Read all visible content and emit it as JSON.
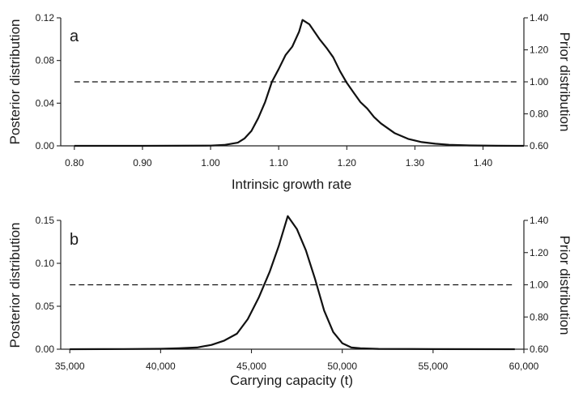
{
  "chart_data": [
    {
      "type": "line",
      "panel_label": "a",
      "xlabel": "Intrinsic growth rate",
      "ylabel": "Posterior distribution",
      "y2label": "Prior distribution",
      "xlim": [
        0.78,
        1.46
      ],
      "ylim": [
        0,
        0.12
      ],
      "y2lim": [
        0.6,
        1.4
      ],
      "x_ticks": [
        0.8,
        0.9,
        1.0,
        1.1,
        1.2,
        1.3,
        1.4
      ],
      "x_tick_labels": [
        "0.80",
        "0.90",
        "1.00",
        "1.10",
        "1.20",
        "1.30",
        "1.40"
      ],
      "y_ticks": [
        0,
        0.04,
        0.08,
        0.12
      ],
      "y_tick_labels": [
        "0.00",
        "0.04",
        "0.08",
        "0.12"
      ],
      "y2_ticks": [
        0.6,
        0.8,
        1.0,
        1.2,
        1.4
      ],
      "y2_tick_labels": [
        "0.60",
        "0.80",
        "1.00",
        "1.20",
        "1.40"
      ],
      "series": [
        {
          "name": "Posterior distribution",
          "axis": "left",
          "style": "solid",
          "x": [
            0.8,
            0.9,
            1.0,
            1.02,
            1.04,
            1.05,
            1.06,
            1.07,
            1.08,
            1.09,
            1.1,
            1.11,
            1.12,
            1.13,
            1.135,
            1.145,
            1.16,
            1.17,
            1.18,
            1.19,
            1.2,
            1.21,
            1.22,
            1.23,
            1.24,
            1.25,
            1.27,
            1.29,
            1.31,
            1.33,
            1.35,
            1.38,
            1.42,
            1.46
          ],
          "y": [
            0,
            0,
            0.0002,
            0.0008,
            0.003,
            0.007,
            0.014,
            0.026,
            0.041,
            0.06,
            0.072,
            0.085,
            0.093,
            0.107,
            0.118,
            0.114,
            0.1,
            0.092,
            0.083,
            0.07,
            0.059,
            0.05,
            0.041,
            0.035,
            0.027,
            0.021,
            0.012,
            0.0065,
            0.0035,
            0.002,
            0.001,
            0.0004,
            0.0001,
            0
          ]
        },
        {
          "name": "Prior distribution",
          "axis": "right",
          "style": "dashed",
          "x": [
            0.8,
            1.45
          ],
          "y": [
            1.0,
            1.0
          ]
        }
      ]
    },
    {
      "type": "line",
      "panel_label": "b",
      "xlabel": "Carrying capacity (t)",
      "ylabel": "Posterior distribution",
      "y2label": "Prior distribution",
      "xlim": [
        34500,
        60000
      ],
      "ylim": [
        0,
        0.15
      ],
      "y2lim": [
        0.6,
        1.4
      ],
      "x_ticks": [
        35000,
        40000,
        45000,
        50000,
        55000,
        60000
      ],
      "x_tick_labels": [
        "35,000",
        "40,000",
        "45,000",
        "50,000",
        "55,000",
        "60,000"
      ],
      "y_ticks": [
        0,
        0.05,
        0.1,
        0.15
      ],
      "y_tick_labels": [
        "0.00",
        "0.05",
        "0.10",
        "0.15"
      ],
      "y2_ticks": [
        0.6,
        0.8,
        1.0,
        1.2,
        1.4
      ],
      "y2_tick_labels": [
        "0.60",
        "0.80",
        "1.00",
        "1.20",
        "1.40"
      ],
      "series": [
        {
          "name": "Posterior distribution",
          "axis": "left",
          "style": "solid",
          "x": [
            35000,
            38000,
            40000,
            41000,
            42000,
            42800,
            43500,
            44200,
            44800,
            45400,
            46000,
            46500,
            47000,
            47500,
            48000,
            48500,
            49000,
            49500,
            50000,
            50500,
            51000,
            52000,
            55000,
            59500
          ],
          "y": [
            0,
            0.0002,
            0.0005,
            0.001,
            0.002,
            0.005,
            0.01,
            0.018,
            0.035,
            0.06,
            0.09,
            0.12,
            0.155,
            0.14,
            0.115,
            0.082,
            0.045,
            0.02,
            0.007,
            0.002,
            0.001,
            0.0004,
            0.0001,
            0
          ]
        },
        {
          "name": "Prior distribution",
          "axis": "right",
          "style": "dashed",
          "x": [
            35000,
            59500
          ],
          "y": [
            1.0,
            1.0
          ]
        }
      ]
    }
  ]
}
